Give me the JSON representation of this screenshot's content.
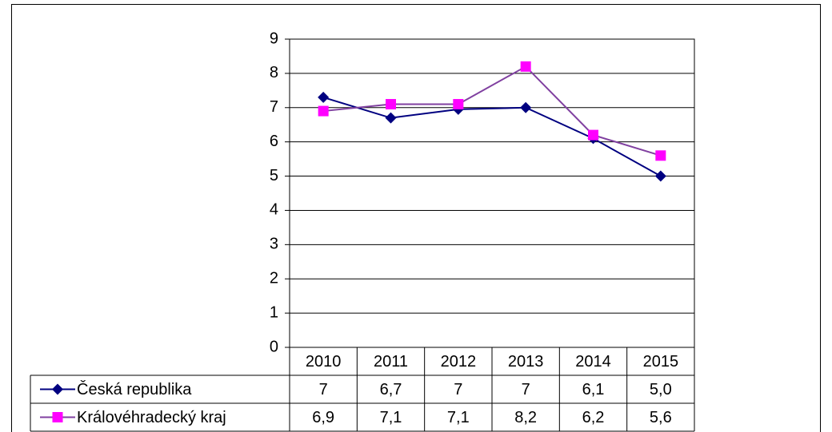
{
  "chart_data": {
    "type": "line",
    "categories": [
      "2010",
      "2011",
      "2012",
      "2013",
      "2014",
      "2015"
    ],
    "series": [
      {
        "name": "Česká republika",
        "color": "#000080",
        "marker_color": "#000080",
        "marker": "diamond",
        "values": [
          7.3,
          6.7,
          6.95,
          7.0,
          6.1,
          5.0
        ],
        "value_labels": [
          "7",
          "6,7",
          "7",
          "7",
          "6,1",
          "5,0"
        ]
      },
      {
        "name": "Královéhradecký kraj",
        "color": "#8040a0",
        "marker_color": "#ff00ff",
        "marker": "square",
        "values": [
          6.9,
          7.1,
          7.1,
          8.2,
          6.2,
          5.6
        ],
        "value_labels": [
          "6,9",
          "7,1",
          "7,1",
          "8,2",
          "6,2",
          "5,6"
        ]
      }
    ],
    "ylim": [
      0,
      9
    ],
    "yticks": [
      0,
      1,
      2,
      3,
      4,
      5,
      6,
      7,
      8,
      9
    ],
    "grid": true,
    "data_table": true
  }
}
